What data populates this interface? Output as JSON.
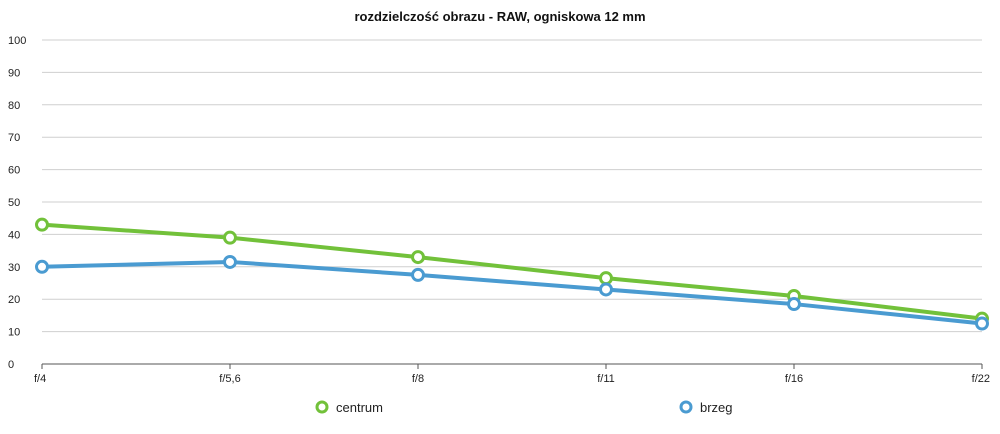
{
  "chart_data": {
    "type": "line",
    "title": "rozdzielczość obrazu - RAW, ogniskowa 12 mm",
    "xlabel": "",
    "ylabel": "",
    "categories": [
      "f/4",
      "f/5,6",
      "f/8",
      "f/11",
      "f/16",
      "f/22"
    ],
    "ylim": [
      0,
      100
    ],
    "yticks": [
      0,
      10,
      20,
      30,
      40,
      50,
      60,
      70,
      80,
      90,
      100
    ],
    "grid": true,
    "legend_position": "bottom",
    "series": [
      {
        "name": "centrum",
        "color": "#72c13a",
        "values": [
          43,
          39,
          33,
          26.5,
          21,
          14
        ]
      },
      {
        "name": "brzeg",
        "color": "#4a9bd1",
        "values": [
          30,
          31.5,
          27.5,
          23,
          18.5,
          12.5
        ]
      }
    ]
  }
}
